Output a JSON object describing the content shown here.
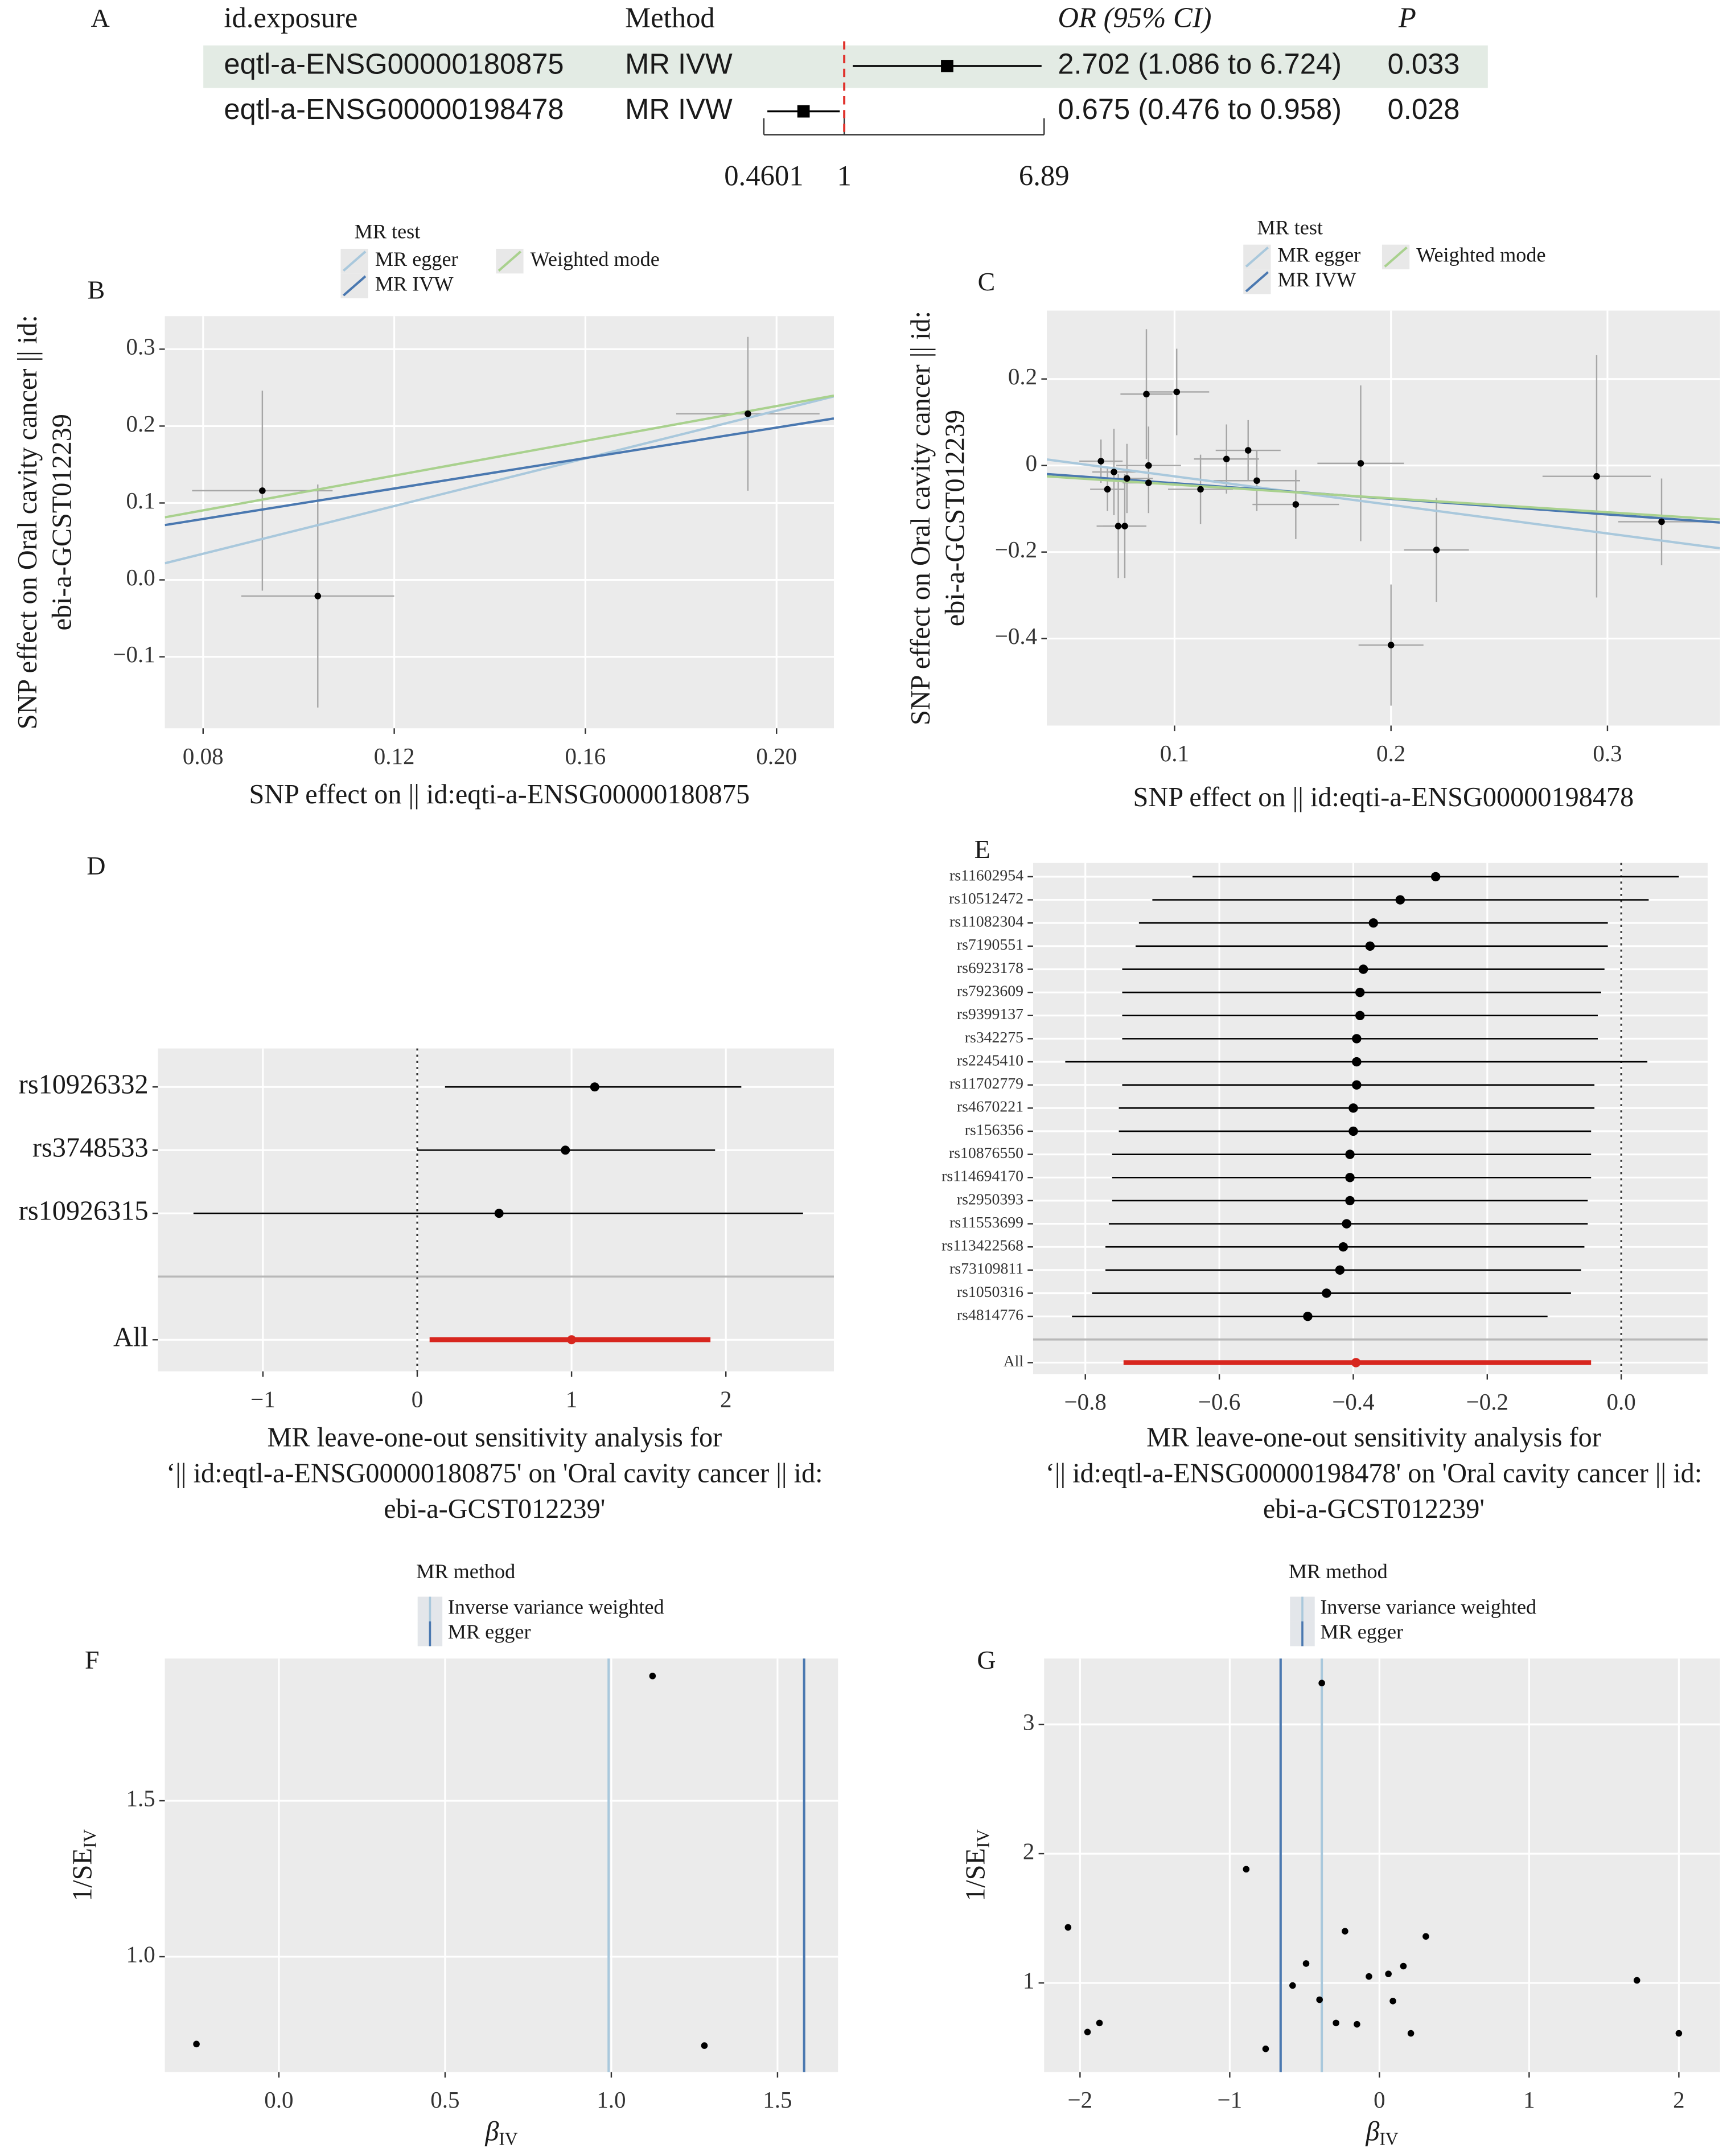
{
  "chart_data": [
    {
      "type": "forest_table",
      "panel": "A",
      "columns": [
        "id.exposure",
        "Method",
        "OR (95% CI)",
        "P"
      ],
      "categories": [
        "eqtl-a-ENSG00000180875",
        "eqtl-a-ENSG00000198478"
      ],
      "methods": [
        "MR IVW",
        "MR IVW"
      ],
      "values": [
        2.702,
        0.675
      ],
      "lower": [
        1.086,
        0.476
      ],
      "upper": [
        6.724,
        0.958
      ],
      "value_labels": [
        "2.702 (1.086 to 6.724)",
        "0.675 (0.476 to 0.958)"
      ],
      "p": [
        0.033,
        0.028
      ],
      "log": true,
      "xlim": [
        0.4601,
        6.89
      ],
      "xticks": [
        0.4601,
        1,
        6.89
      ],
      "ref_line": 1,
      "color": "#000000",
      "ref_color": "#e0312b",
      "highlight": "#e3ebe4"
    },
    {
      "type": "scatter",
      "panel": "B",
      "legend_title": "MR test",
      "ylabel": [
        "SNP effect on Oral cavity cancer || id:",
        "ebi-a-GCST012239"
      ],
      "xlabel": "SNP effect on || id:eqti-a-ENSG00000180875",
      "x": [
        0.0924,
        0.104,
        0.194
      ],
      "values": [
        0.116,
        -0.021,
        0.216
      ],
      "xerr": [
        0.0147,
        0.016,
        0.015
      ],
      "yerr": [
        0.13,
        0.145,
        0.1
      ],
      "color": "#000000",
      "error_color": "#a6a6a6",
      "lines": [
        {
          "name": "MR egger",
          "color": "#a9c8dc",
          "slope": 1.55,
          "intercept": -0.09
        },
        {
          "name": "MR IVW",
          "color": "#4a78b0",
          "slope": 0.99,
          "intercept": 0
        },
        {
          "name": "Weighted mode",
          "color": "#a9d18e",
          "slope": 1.13,
          "intercept": 0
        }
      ],
      "xlim": [
        0.072,
        0.212
      ],
      "ylim": [
        -0.193,
        0.343
      ],
      "xticks": [
        0.08,
        0.12,
        0.16,
        {
          "value": 0.2,
          "label": "0.20"
        }
      ],
      "yticks": [
        {
          "value": -0.1,
          "label": "−0.1"
        },
        {
          "value": 0,
          "label": "0.0"
        },
        0.1,
        0.2,
        0.3
      ],
      "grid": true
    },
    {
      "type": "scatter",
      "panel": "C",
      "legend_title": "MR test",
      "ylabel": [
        "SNP effect on Oral cavity cancer || id:",
        "ebi-a-GCST012239"
      ],
      "xlabel": "SNP effect on || id:eqti-a-ENSG00000198478",
      "x": [
        0.066,
        0.069,
        0.072,
        0.074,
        0.077,
        0.078,
        0.087,
        0.088,
        0.088,
        0.101,
        0.112,
        0.124,
        0.134,
        0.138,
        0.156,
        0.186,
        0.2,
        0.221,
        0.295,
        0.325
      ],
      "values": [
        0.01,
        -0.055,
        -0.015,
        -0.14,
        -0.14,
        -0.03,
        0.165,
        0.0,
        -0.04,
        0.17,
        -0.055,
        0.015,
        0.035,
        -0.035,
        -0.09,
        0.005,
        -0.415,
        -0.195,
        -0.025,
        -0.13
      ],
      "xerr": [
        0.01,
        0.008,
        0.01,
        0.01,
        0.01,
        0.012,
        0.012,
        0.015,
        0.012,
        0.015,
        0.015,
        0.015,
        0.015,
        0.02,
        0.02,
        0.02,
        0.015,
        0.015,
        0.025,
        0.02
      ],
      "yerr": [
        0.05,
        0.05,
        0.1,
        0.12,
        0.12,
        0.08,
        0.15,
        0.09,
        0.07,
        0.1,
        0.08,
        0.08,
        0.07,
        0.07,
        0.08,
        0.18,
        0.14,
        0.12,
        0.28,
        0.1
      ],
      "color": "#000000",
      "error_color": "#a6a6a6",
      "lines": [
        {
          "name": "MR egger",
          "color": "#a9c8dc",
          "slope": -0.66,
          "intercept": 0.041
        },
        {
          "name": "MR IVW",
          "color": "#4a78b0",
          "slope": -0.36,
          "intercept": -0.005
        },
        {
          "name": "Weighted mode",
          "color": "#a9d18e",
          "slope": -0.32,
          "intercept": -0.012
        }
      ],
      "xlim": [
        0.041,
        0.352
      ],
      "ylim": [
        -0.601,
        0.358
      ],
      "xticks": [
        0.1,
        0.2,
        0.3
      ],
      "yticks": [
        {
          "value": -0.4,
          "label": "−0.4"
        },
        {
          "value": -0.2,
          "label": "−0.2"
        },
        0,
        0.2
      ],
      "grid": true
    },
    {
      "type": "forest",
      "panel": "D",
      "categories": [
        "rs10926332",
        "rs3748533",
        "rs10926315",
        "All"
      ],
      "values": [
        1.15,
        0.96,
        0.53,
        1.0
      ],
      "lower": [
        0.18,
        0.0,
        -1.45,
        0.08
      ],
      "upper": [
        2.1,
        1.93,
        2.5,
        1.9
      ],
      "color": "#000000",
      "summary_color": "#d7261e",
      "ref_line": 0,
      "xlim": [
        -1.68,
        2.7
      ],
      "xticks": [
        {
          "value": -1,
          "label": "−1"
        },
        0,
        1,
        2
      ],
      "grid": true,
      "xlabel": [
        "MR leave-one-out sensitivity analysis for",
        "‘|| id:eqtl-a-ENSG00000180875' on 'Oral cavity cancer || id:",
        "ebi-a-GCST012239'"
      ]
    },
    {
      "type": "forest",
      "panel": "E",
      "categories": [
        "rs11602954",
        "rs10512472",
        "rs11082304",
        "rs7190551",
        "rs6923178",
        "rs7923609",
        "rs9399137",
        "rs342275",
        "rs2245410",
        "rs11702779",
        "rs4670221",
        "rs156356",
        "rs10876550",
        "rs114694170",
        "rs2950393",
        "rs11553699",
        "rs113422568",
        "rs73109811",
        "rs1050316",
        "rs4814776",
        "All"
      ],
      "values": [
        -0.277,
        -0.33,
        -0.37,
        -0.375,
        -0.385,
        -0.39,
        -0.39,
        -0.395,
        -0.395,
        -0.395,
        -0.4,
        -0.4,
        -0.405,
        -0.405,
        -0.405,
        -0.41,
        -0.415,
        -0.42,
        -0.44,
        -0.468,
        -0.396
      ],
      "lower": [
        -0.64,
        -0.7,
        -0.72,
        -0.725,
        -0.745,
        -0.745,
        -0.745,
        -0.745,
        -0.83,
        -0.745,
        -0.75,
        -0.75,
        -0.76,
        -0.76,
        -0.76,
        -0.765,
        -0.77,
        -0.77,
        -0.79,
        -0.82,
        -0.743
      ],
      "upper": [
        0.086,
        0.041,
        -0.02,
        -0.02,
        -0.025,
        -0.03,
        -0.035,
        -0.035,
        0.039,
        -0.04,
        -0.04,
        -0.045,
        -0.045,
        -0.045,
        -0.05,
        -0.05,
        -0.055,
        -0.06,
        -0.075,
        -0.11,
        -0.045
      ],
      "color": "#000000",
      "summary_color": "#d7261e",
      "ref_line": 0,
      "xlim": [
        -0.878,
        0.129
      ],
      "xticks": [
        {
          "value": -0.8,
          "label": "−0.8"
        },
        {
          "value": -0.6,
          "label": "−0.6"
        },
        {
          "value": -0.4,
          "label": "−0.4"
        },
        {
          "value": -0.2,
          "label": "−0.2"
        },
        {
          "value": 0,
          "label": "0.0"
        }
      ],
      "grid": true,
      "xlabel": [
        "MR leave-one-out sensitivity analysis for",
        "‘|| id:eqtl-a-ENSG00000198478' on 'Oral cavity cancer || id:",
        "ebi-a-GCST012239'"
      ]
    },
    {
      "type": "funnel",
      "panel": "F",
      "legend_title": "MR method",
      "x": [
        -0.248,
        1.124,
        1.28
      ],
      "values": [
        0.72,
        1.9,
        0.715
      ],
      "color": "#000000",
      "lines": [
        {
          "name": "Inverse variance weighted",
          "color": "#a9c8dc",
          "value": 0.992
        },
        {
          "name": "MR egger",
          "color": "#4a78b0",
          "value": 1.58
        }
      ],
      "xlim": [
        -0.343,
        1.682
      ],
      "ylim": [
        0.63,
        1.956
      ],
      "xticks": [
        {
          "value": 0,
          "label": "0.0"
        },
        0.5,
        {
          "value": 1,
          "label": "1.0"
        },
        1.5
      ],
      "yticks": [
        {
          "value": 1,
          "label": "1.0"
        },
        1.5
      ],
      "grid": true,
      "xlabel": "β",
      "xlabel_sub": "IV",
      "ylabel": "1/SE",
      "ylabel_sub": "IV"
    },
    {
      "type": "funnel",
      "panel": "G",
      "legend_title": "MR method",
      "x": [
        -2.08,
        -1.95,
        -1.87,
        -0.89,
        -0.76,
        -0.58,
        -0.49,
        -0.4,
        -0.385,
        -0.29,
        -0.23,
        -0.15,
        -0.07,
        0.06,
        0.09,
        0.16,
        0.21,
        0.31,
        1.72,
        2.0
      ],
      "values": [
        1.43,
        0.62,
        0.69,
        1.88,
        0.49,
        0.98,
        1.15,
        0.87,
        3.32,
        0.69,
        1.4,
        0.68,
        1.05,
        1.07,
        0.86,
        1.13,
        0.61,
        1.36,
        1.02,
        0.61
      ],
      "color": "#000000",
      "lines": [
        {
          "name": "Inverse variance weighted",
          "color": "#a9c8dc",
          "value": -0.385
        },
        {
          "name": "MR egger",
          "color": "#4a78b0",
          "value": -0.66
        }
      ],
      "xlim": [
        -2.24,
        2.275
      ],
      "ylim": [
        0.31,
        3.51
      ],
      "xticks": [
        {
          "value": -2,
          "label": "−2"
        },
        {
          "value": -1,
          "label": "−1"
        },
        0,
        1,
        2
      ],
      "yticks": [
        1,
        2,
        3
      ],
      "grid": true,
      "xlabel": "β",
      "xlabel_sub": "IV",
      "ylabel": "1/SE",
      "ylabel_sub": "IV"
    }
  ]
}
